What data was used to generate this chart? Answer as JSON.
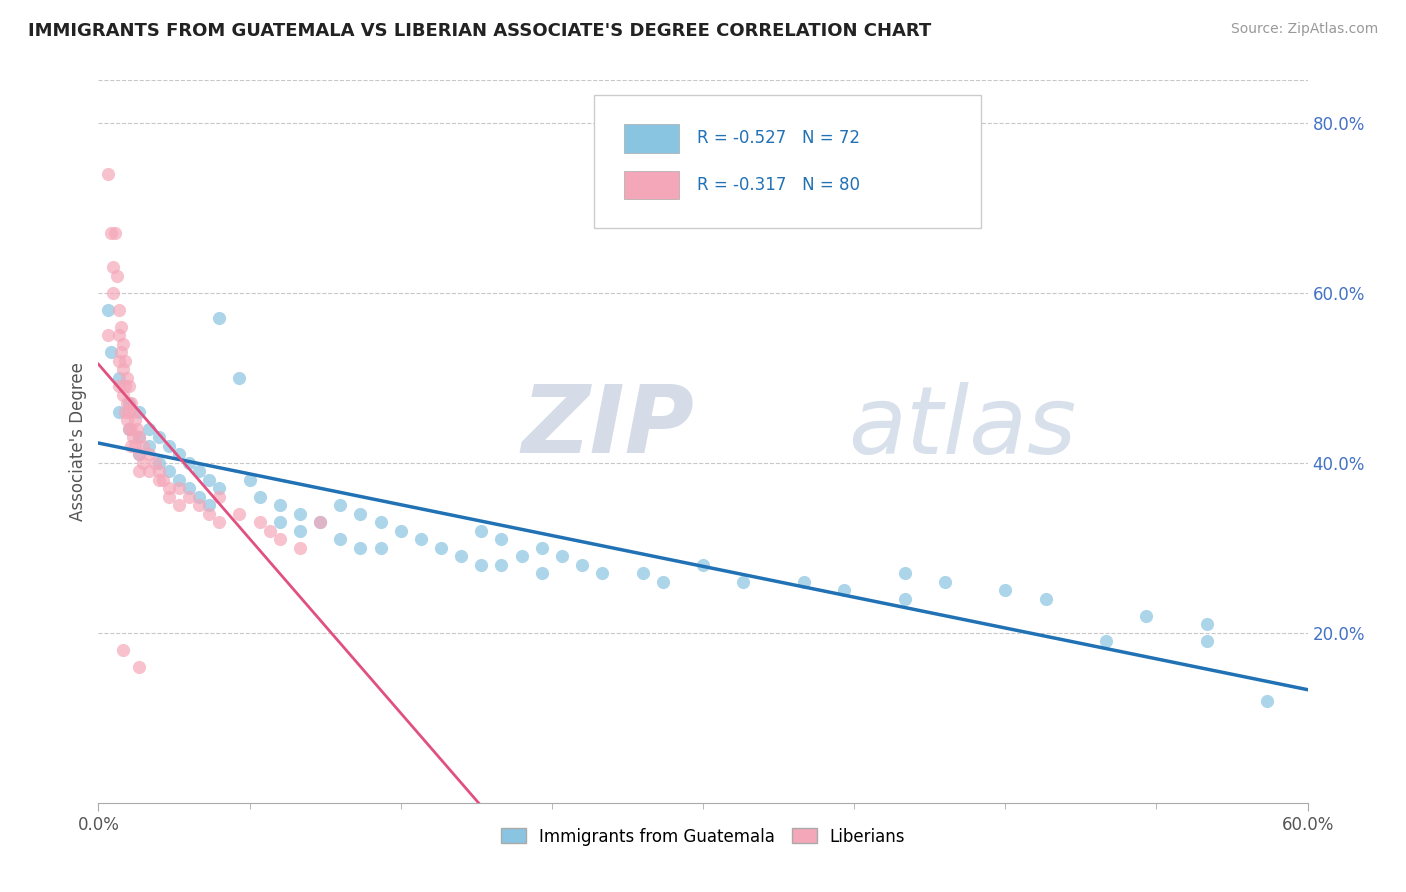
{
  "title": "IMMIGRANTS FROM GUATEMALA VS LIBERIAN ASSOCIATE'S DEGREE CORRELATION CHART",
  "source": "Source: ZipAtlas.com",
  "ylabel": "Associate's Degree",
  "legend_label1": "Immigrants from Guatemala",
  "legend_label2": "Liberians",
  "R1": -0.527,
  "N1": 72,
  "R2": -0.317,
  "N2": 80,
  "color_blue": "#89c4e1",
  "color_pink": "#f4a7b9",
  "color_blue_line": "#2171b5",
  "color_pink_line": "#e05080",
  "watermark_zip": "ZIP",
  "watermark_atlas": "atlas",
  "scatter_blue": [
    [
      0.005,
      0.58
    ],
    [
      0.006,
      0.53
    ],
    [
      0.01,
      0.5
    ],
    [
      0.01,
      0.46
    ],
    [
      0.015,
      0.47
    ],
    [
      0.015,
      0.44
    ],
    [
      0.02,
      0.46
    ],
    [
      0.02,
      0.43
    ],
    [
      0.02,
      0.41
    ],
    [
      0.025,
      0.44
    ],
    [
      0.025,
      0.42
    ],
    [
      0.03,
      0.43
    ],
    [
      0.03,
      0.4
    ],
    [
      0.035,
      0.42
    ],
    [
      0.035,
      0.39
    ],
    [
      0.04,
      0.41
    ],
    [
      0.04,
      0.38
    ],
    [
      0.045,
      0.4
    ],
    [
      0.045,
      0.37
    ],
    [
      0.05,
      0.39
    ],
    [
      0.05,
      0.36
    ],
    [
      0.055,
      0.38
    ],
    [
      0.055,
      0.35
    ],
    [
      0.06,
      0.57
    ],
    [
      0.06,
      0.37
    ],
    [
      0.07,
      0.5
    ],
    [
      0.075,
      0.38
    ],
    [
      0.08,
      0.36
    ],
    [
      0.09,
      0.35
    ],
    [
      0.09,
      0.33
    ],
    [
      0.1,
      0.34
    ],
    [
      0.1,
      0.32
    ],
    [
      0.11,
      0.33
    ],
    [
      0.12,
      0.35
    ],
    [
      0.12,
      0.31
    ],
    [
      0.13,
      0.34
    ],
    [
      0.13,
      0.3
    ],
    [
      0.14,
      0.33
    ],
    [
      0.14,
      0.3
    ],
    [
      0.15,
      0.32
    ],
    [
      0.16,
      0.31
    ],
    [
      0.17,
      0.3
    ],
    [
      0.18,
      0.29
    ],
    [
      0.19,
      0.32
    ],
    [
      0.19,
      0.28
    ],
    [
      0.2,
      0.31
    ],
    [
      0.2,
      0.28
    ],
    [
      0.21,
      0.29
    ],
    [
      0.22,
      0.3
    ],
    [
      0.22,
      0.27
    ],
    [
      0.23,
      0.29
    ],
    [
      0.24,
      0.28
    ],
    [
      0.25,
      0.27
    ],
    [
      0.27,
      0.27
    ],
    [
      0.28,
      0.26
    ],
    [
      0.3,
      0.28
    ],
    [
      0.32,
      0.26
    ],
    [
      0.35,
      0.26
    ],
    [
      0.37,
      0.25
    ],
    [
      0.4,
      0.27
    ],
    [
      0.4,
      0.24
    ],
    [
      0.42,
      0.26
    ],
    [
      0.45,
      0.25
    ],
    [
      0.47,
      0.24
    ],
    [
      0.5,
      0.19
    ],
    [
      0.52,
      0.22
    ],
    [
      0.55,
      0.21
    ],
    [
      0.55,
      0.19
    ],
    [
      0.58,
      0.12
    ]
  ],
  "scatter_pink": [
    [
      0.005,
      0.74
    ],
    [
      0.006,
      0.67
    ],
    [
      0.007,
      0.63
    ],
    [
      0.007,
      0.6
    ],
    [
      0.008,
      0.67
    ],
    [
      0.009,
      0.62
    ],
    [
      0.01,
      0.58
    ],
    [
      0.01,
      0.55
    ],
    [
      0.01,
      0.52
    ],
    [
      0.01,
      0.49
    ],
    [
      0.011,
      0.56
    ],
    [
      0.011,
      0.53
    ],
    [
      0.012,
      0.54
    ],
    [
      0.012,
      0.51
    ],
    [
      0.012,
      0.48
    ],
    [
      0.013,
      0.52
    ],
    [
      0.013,
      0.49
    ],
    [
      0.013,
      0.46
    ],
    [
      0.014,
      0.5
    ],
    [
      0.014,
      0.47
    ],
    [
      0.014,
      0.45
    ],
    [
      0.015,
      0.49
    ],
    [
      0.015,
      0.46
    ],
    [
      0.015,
      0.44
    ],
    [
      0.016,
      0.47
    ],
    [
      0.016,
      0.44
    ],
    [
      0.016,
      0.42
    ],
    [
      0.017,
      0.46
    ],
    [
      0.017,
      0.43
    ],
    [
      0.018,
      0.45
    ],
    [
      0.018,
      0.42
    ],
    [
      0.019,
      0.44
    ],
    [
      0.02,
      0.43
    ],
    [
      0.02,
      0.41
    ],
    [
      0.02,
      0.39
    ],
    [
      0.022,
      0.42
    ],
    [
      0.022,
      0.4
    ],
    [
      0.025,
      0.41
    ],
    [
      0.025,
      0.39
    ],
    [
      0.028,
      0.4
    ],
    [
      0.03,
      0.39
    ],
    [
      0.03,
      0.38
    ],
    [
      0.032,
      0.38
    ],
    [
      0.035,
      0.37
    ],
    [
      0.035,
      0.36
    ],
    [
      0.04,
      0.37
    ],
    [
      0.04,
      0.35
    ],
    [
      0.045,
      0.36
    ],
    [
      0.05,
      0.35
    ],
    [
      0.055,
      0.34
    ],
    [
      0.06,
      0.36
    ],
    [
      0.06,
      0.33
    ],
    [
      0.07,
      0.34
    ],
    [
      0.08,
      0.33
    ],
    [
      0.085,
      0.32
    ],
    [
      0.09,
      0.31
    ],
    [
      0.1,
      0.3
    ],
    [
      0.11,
      0.33
    ],
    [
      0.012,
      0.18
    ],
    [
      0.02,
      0.16
    ],
    [
      0.005,
      0.55
    ]
  ],
  "xmin": 0.0,
  "xmax": 0.6,
  "ymin": 0.0,
  "ymax": 0.85
}
